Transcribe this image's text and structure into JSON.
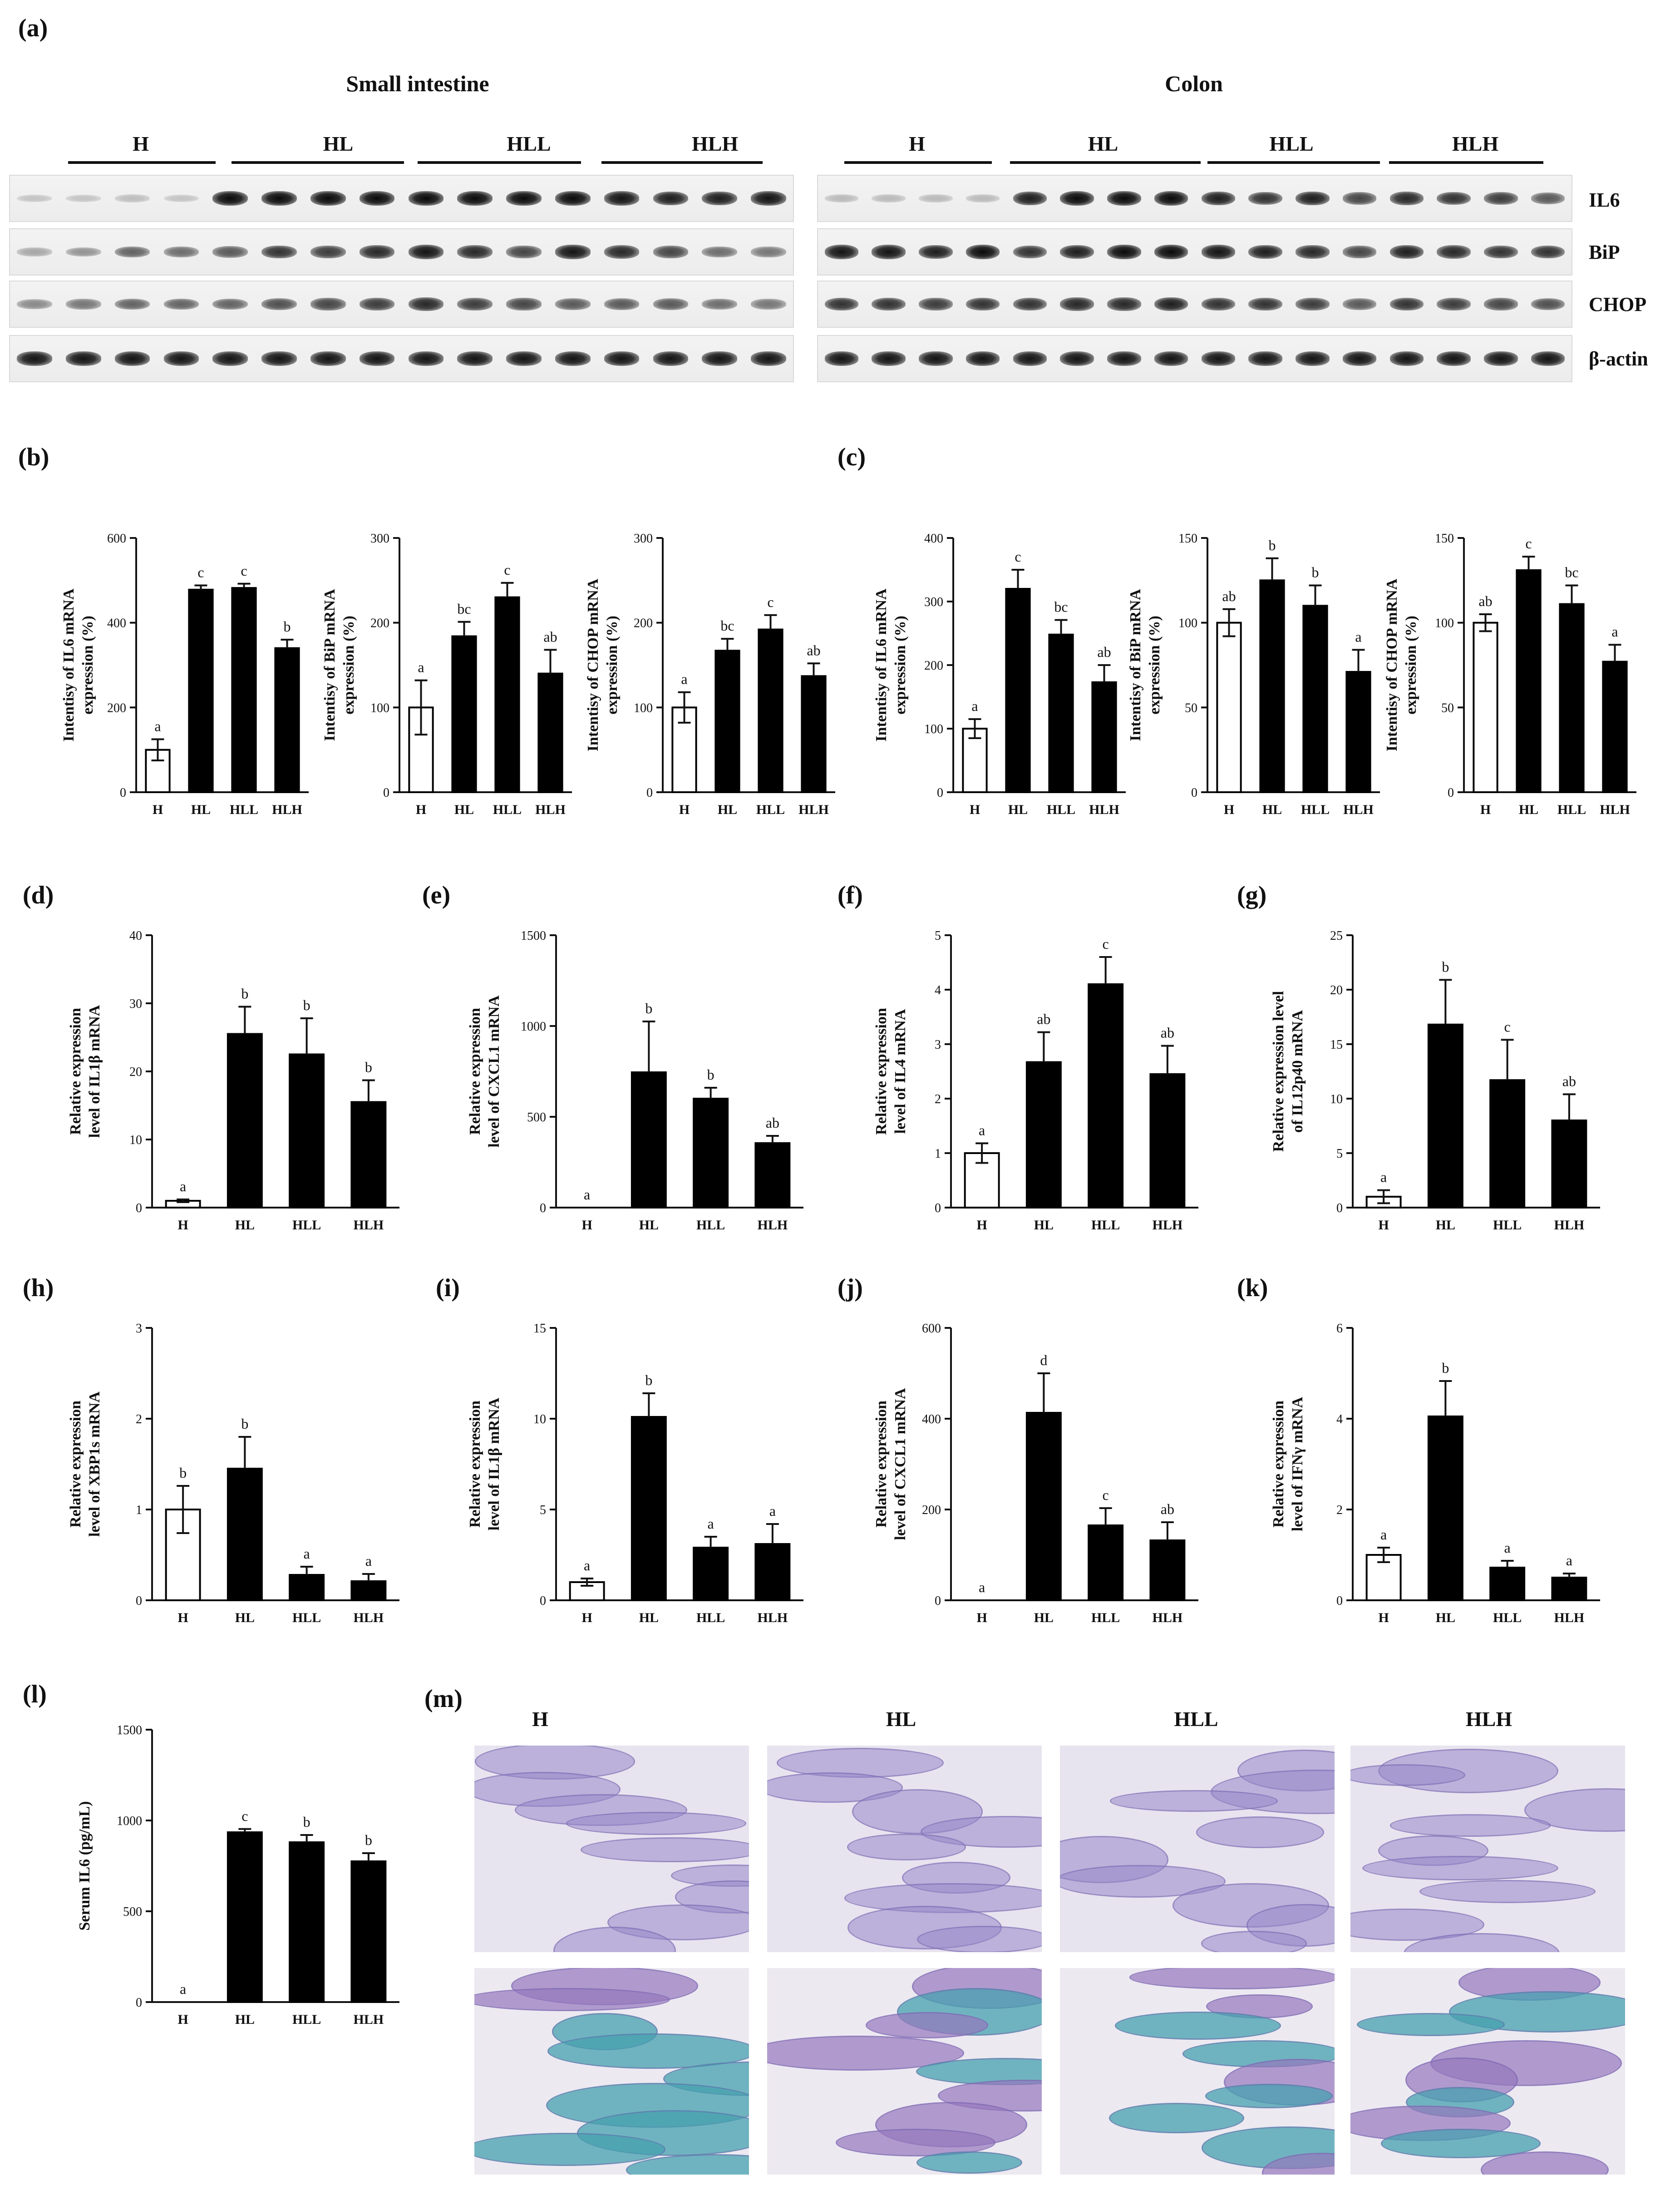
{
  "figure": {
    "panel_a": {
      "label": "(a)",
      "sections": [
        {
          "title": "Small intestine",
          "groups": [
            "H",
            "HL",
            "HLL",
            "HLH"
          ]
        },
        {
          "title": "Colon",
          "groups": [
            "H",
            "HL",
            "HLL",
            "HLH"
          ]
        }
      ],
      "genes": [
        "IL6",
        "BiP",
        "CHOP",
        "β-actin"
      ]
    },
    "panel_m": {
      "label": "(m)",
      "columns": [
        "H",
        "HL",
        "HLL",
        "HLH"
      ]
    }
  },
  "chart_data": [
    {
      "id": "b1",
      "panel_label": "(b)",
      "type": "bar",
      "ylabel": "Intentisy of IL6 mRNA expression (%)",
      "categories": [
        "H",
        "HL",
        "HLL",
        "HLH"
      ],
      "values": [
        100,
        478,
        482,
        340
      ],
      "errors": [
        25,
        10,
        10,
        20
      ],
      "letters": [
        "a",
        "c",
        "c",
        "b"
      ],
      "ylim": [
        0,
        600
      ],
      "yticks": [
        0,
        200,
        400,
        600
      ],
      "open_first": true
    },
    {
      "id": "b2",
      "panel_label": "",
      "type": "bar",
      "ylabel": "Intentisy of BiP mRNA expression (%)",
      "categories": [
        "H",
        "HL",
        "HLL",
        "HLH"
      ],
      "values": [
        100,
        184,
        230,
        140
      ],
      "errors": [
        32,
        17,
        17,
        28
      ],
      "letters": [
        "a",
        "bc",
        "c",
        "ab"
      ],
      "ylim": [
        0,
        300
      ],
      "yticks": [
        0,
        100,
        200,
        300
      ],
      "open_first": true
    },
    {
      "id": "b3",
      "panel_label": "",
      "type": "bar",
      "ylabel": "Intentisy of CHOP mRNA expression (%)",
      "categories": [
        "H",
        "HL",
        "HLL",
        "HLH"
      ],
      "values": [
        100,
        167,
        192,
        137
      ],
      "errors": [
        18,
        14,
        17,
        15
      ],
      "letters": [
        "a",
        "bc",
        "c",
        "ab"
      ],
      "ylim": [
        0,
        300
      ],
      "yticks": [
        0,
        100,
        200,
        300
      ],
      "open_first": true
    },
    {
      "id": "c1",
      "panel_label": "(c)",
      "type": "bar",
      "ylabel": "Intentisy of IL6 mRNA expression (%)",
      "categories": [
        "H",
        "HL",
        "HLL",
        "HLH"
      ],
      "values": [
        100,
        320,
        248,
        173
      ],
      "errors": [
        15,
        30,
        23,
        27
      ],
      "letters": [
        "a",
        "c",
        "bc",
        "ab"
      ],
      "ylim": [
        0,
        400
      ],
      "yticks": [
        0,
        100,
        200,
        300,
        400
      ],
      "open_first": true
    },
    {
      "id": "c2",
      "panel_label": "",
      "type": "bar",
      "ylabel": "Intentisy of BiP mRNA expression (%)",
      "categories": [
        "H",
        "HL",
        "HLL",
        "HLH"
      ],
      "values": [
        100,
        125,
        110,
        71
      ],
      "errors": [
        8,
        13,
        12,
        13
      ],
      "letters": [
        "ab",
        "b",
        "b",
        "a"
      ],
      "ylim": [
        0,
        150
      ],
      "yticks": [
        0,
        50,
        100,
        150
      ],
      "open_first": true
    },
    {
      "id": "c3",
      "panel_label": "",
      "type": "bar",
      "ylabel": "Intentisy of CHOP mRNA expression (%)",
      "categories": [
        "H",
        "HL",
        "HLL",
        "HLH"
      ],
      "values": [
        100,
        131,
        111,
        77
      ],
      "errors": [
        5,
        8,
        11,
        10
      ],
      "letters": [
        "ab",
        "c",
        "bc",
        "a"
      ],
      "ylim": [
        0,
        150
      ],
      "yticks": [
        0,
        50,
        100,
        150
      ],
      "open_first": true
    },
    {
      "id": "d",
      "panel_label": "(d)",
      "type": "bar",
      "ylabel": "Relative expression level of IL1β mRNA",
      "categories": [
        "H",
        "HL",
        "HLL",
        "HLH"
      ],
      "values": [
        1,
        25.5,
        22.5,
        15.5
      ],
      "errors": [
        0.2,
        4,
        5.3,
        3.2
      ],
      "letters": [
        "a",
        "b",
        "b",
        "b"
      ],
      "ylim": [
        0,
        40
      ],
      "yticks": [
        0,
        10,
        20,
        30,
        40
      ],
      "open_first": true
    },
    {
      "id": "e",
      "panel_label": "(e)",
      "type": "bar",
      "ylabel": "Relative expression level of CXCL1 mRNA",
      "categories": [
        "H",
        "HL",
        "HLL",
        "HLH"
      ],
      "values": [
        0,
        745,
        600,
        355
      ],
      "errors": [
        0,
        280,
        60,
        40
      ],
      "letters": [
        "a",
        "b",
        "b",
        "ab"
      ],
      "ylim": [
        0,
        1500
      ],
      "yticks": [
        0,
        500,
        1000,
        1500
      ],
      "open_first": true
    },
    {
      "id": "f",
      "panel_label": "(f)",
      "type": "bar",
      "ylabel": "Relative expression level of IL4 mRNA",
      "categories": [
        "H",
        "HL",
        "HLL",
        "HLH"
      ],
      "values": [
        1,
        2.67,
        4.1,
        2.45
      ],
      "errors": [
        0.18,
        0.55,
        0.5,
        0.52
      ],
      "letters": [
        "a",
        "ab",
        "c",
        "ab"
      ],
      "ylim": [
        0,
        5
      ],
      "yticks": [
        0,
        1,
        2,
        3,
        4,
        5
      ],
      "open_first": true
    },
    {
      "id": "g",
      "panel_label": "(g)",
      "type": "bar",
      "ylabel": "Relative expression level of IL12p40 mRNA",
      "categories": [
        "H",
        "HL",
        "HLL",
        "HLH"
      ],
      "values": [
        1,
        16.8,
        11.7,
        8
      ],
      "errors": [
        0.6,
        4.1,
        3.7,
        2.4
      ],
      "letters": [
        "a",
        "b",
        "c",
        "ab"
      ],
      "ylim": [
        0,
        25
      ],
      "yticks": [
        0,
        5,
        10,
        15,
        20,
        25
      ],
      "open_first": true
    },
    {
      "id": "h",
      "panel_label": "(h)",
      "type": "bar",
      "ylabel": "Relative expression level of XBP1s mRNA",
      "categories": [
        "H",
        "HL",
        "HLL",
        "HLH"
      ],
      "values": [
        1,
        1.45,
        0.28,
        0.21
      ],
      "errors": [
        0.26,
        0.35,
        0.09,
        0.08
      ],
      "letters": [
        "b",
        "b",
        "a",
        "a"
      ],
      "ylim": [
        0,
        3
      ],
      "yticks": [
        0,
        1,
        2,
        3
      ],
      "open_first": true
    },
    {
      "id": "i",
      "panel_label": "(i)",
      "type": "bar",
      "ylabel": "Relative expression level of IL1β mRNA",
      "categories": [
        "H",
        "HL",
        "HLL",
        "HLH"
      ],
      "values": [
        1,
        10.1,
        2.9,
        3.1
      ],
      "errors": [
        0.2,
        1.3,
        0.6,
        1.1
      ],
      "letters": [
        "a",
        "b",
        "a",
        "a"
      ],
      "ylim": [
        0,
        15
      ],
      "yticks": [
        0,
        5,
        10,
        15
      ],
      "open_first": true
    },
    {
      "id": "j",
      "panel_label": "(j)",
      "type": "bar",
      "ylabel": "Relative expression level of CXCL1 mRNA",
      "categories": [
        "H",
        "HL",
        "HLL",
        "HLH"
      ],
      "values": [
        0,
        413,
        165,
        132
      ],
      "errors": [
        0,
        87,
        38,
        40
      ],
      "letters": [
        "a",
        "d",
        "c",
        "ab"
      ],
      "ylim": [
        0,
        600
      ],
      "yticks": [
        0,
        200,
        400,
        600
      ],
      "open_first": true
    },
    {
      "id": "k",
      "panel_label": "(k)",
      "type": "bar",
      "ylabel": "Relative expression level of IFNγ mRNA",
      "categories": [
        "H",
        "HL",
        "HLL",
        "HLH"
      ],
      "values": [
        1,
        4.05,
        0.72,
        0.5
      ],
      "errors": [
        0.16,
        0.78,
        0.15,
        0.09
      ],
      "letters": [
        "a",
        "b",
        "a",
        "a"
      ],
      "ylim": [
        0,
        6
      ],
      "yticks": [
        0,
        2,
        4,
        6
      ],
      "open_first": true
    },
    {
      "id": "l",
      "panel_label": "(l)",
      "type": "bar",
      "ylabel": "Serum IL6 (pg/mL)",
      "categories": [
        "H",
        "HL",
        "HLL",
        "HLH"
      ],
      "values": [
        0,
        935,
        880,
        775
      ],
      "errors": [
        0,
        18,
        40,
        45
      ],
      "letters": [
        "a",
        "c",
        "b",
        "b"
      ],
      "ylim": [
        0,
        1500
      ],
      "yticks": [
        0,
        500,
        1000,
        1500
      ],
      "open_first": true
    }
  ]
}
